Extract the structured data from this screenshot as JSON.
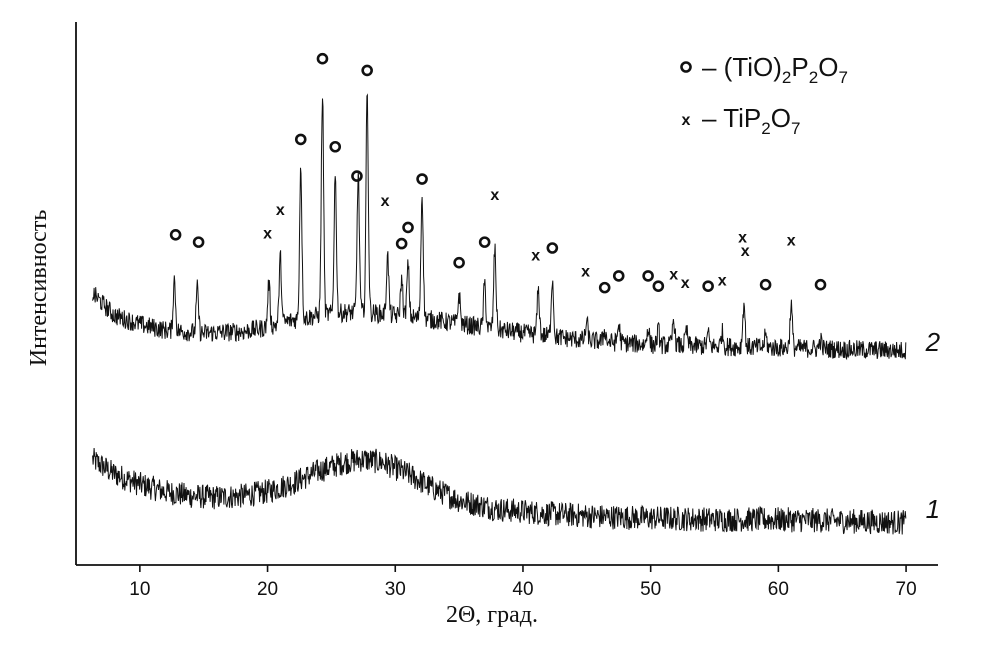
{
  "chart_data": {
    "type": "line",
    "title": "",
    "xlabel": "2Θ, град.",
    "ylabel": "Интенсивность",
    "xlim": [
      5,
      72.5
    ],
    "xticks": [
      10,
      20,
      30,
      40,
      50,
      60,
      70
    ],
    "y_ticks_shown": false,
    "grid": false,
    "legend": {
      "placement": "top-right",
      "entries": [
        {
          "symbol": "o",
          "label_main": "– (TiO)",
          "sub1": "2",
          "label_mid": "P",
          "sub2": "2",
          "label_end": "O",
          "sub3": "7"
        },
        {
          "symbol": "x",
          "label_main": "– TiP",
          "sub1": "2",
          "label_mid": "O",
          "sub2": "7",
          "label_end": "",
          "sub3": ""
        }
      ]
    },
    "series": [
      {
        "name": "1",
        "description_values": "amorphous halo",
        "x": [
          6.3,
          8,
          10,
          12,
          14,
          16,
          18,
          20,
          22,
          24,
          26,
          27.5,
          29,
          31,
          33,
          35,
          38,
          42,
          46,
          50,
          55,
          60,
          65,
          70
        ],
        "y": [
          0.72,
          0.62,
          0.55,
          0.5,
          0.47,
          0.46,
          0.47,
          0.5,
          0.56,
          0.64,
          0.7,
          0.72,
          0.7,
          0.62,
          0.52,
          0.44,
          0.38,
          0.35,
          0.33,
          0.32,
          0.31,
          0.31,
          0.3,
          0.29
        ]
      },
      {
        "name": "2",
        "baseline_x": [
          6.3,
          8,
          10,
          12,
          15,
          18,
          20,
          22,
          24,
          26,
          28,
          30,
          33,
          36,
          40,
          45,
          50,
          55,
          60,
          65,
          70
        ],
        "baseline_y": [
          1.85,
          1.7,
          1.64,
          1.6,
          1.58,
          1.59,
          1.62,
          1.67,
          1.7,
          1.72,
          1.72,
          1.7,
          1.67,
          1.63,
          1.58,
          1.53,
          1.5,
          1.49,
          1.48,
          1.47,
          1.46
        ],
        "peaks": [
          {
            "x": 12.7,
            "h": 0.35
          },
          {
            "x": 14.5,
            "h": 0.3
          },
          {
            "x": 20.1,
            "h": 0.3
          },
          {
            "x": 21.0,
            "h": 0.45
          },
          {
            "x": 22.6,
            "h": 1.05
          },
          {
            "x": 24.3,
            "h": 1.5
          },
          {
            "x": 25.3,
            "h": 0.95
          },
          {
            "x": 27.1,
            "h": 0.95
          },
          {
            "x": 27.8,
            "h": 1.5
          },
          {
            "x": 29.4,
            "h": 0.4
          },
          {
            "x": 30.5,
            "h": 0.25
          },
          {
            "x": 31.0,
            "h": 0.35
          },
          {
            "x": 32.1,
            "h": 0.85
          },
          {
            "x": 35.0,
            "h": 0.2
          },
          {
            "x": 37.0,
            "h": 0.3
          },
          {
            "x": 37.8,
            "h": 0.55
          },
          {
            "x": 41.2,
            "h": 0.3
          },
          {
            "x": 42.3,
            "h": 0.4
          },
          {
            "x": 45.0,
            "h": 0.12
          },
          {
            "x": 46.4,
            "h": 0.08
          },
          {
            "x": 47.5,
            "h": 0.12
          },
          {
            "x": 49.8,
            "h": 0.12
          },
          {
            "x": 50.6,
            "h": 0.1
          },
          {
            "x": 51.8,
            "h": 0.18
          },
          {
            "x": 52.8,
            "h": 0.1
          },
          {
            "x": 54.5,
            "h": 0.08
          },
          {
            "x": 55.6,
            "h": 0.1
          },
          {
            "x": 57.3,
            "h": 0.3
          },
          {
            "x": 59.0,
            "h": 0.08
          },
          {
            "x": 61.0,
            "h": 0.3
          },
          {
            "x": 63.3,
            "h": 0.06
          }
        ]
      }
    ],
    "annotations": {
      "o_markers": [
        {
          "x": 12.8,
          "y": 2.25
        },
        {
          "x": 14.6,
          "y": 2.2
        },
        {
          "x": 22.6,
          "y": 2.9
        },
        {
          "x": 24.3,
          "y": 3.45
        },
        {
          "x": 25.3,
          "y": 2.85
        },
        {
          "x": 27.0,
          "y": 2.65
        },
        {
          "x": 27.8,
          "y": 3.37
        },
        {
          "x": 30.5,
          "y": 2.19
        },
        {
          "x": 31.0,
          "y": 2.3
        },
        {
          "x": 32.1,
          "y": 2.63
        },
        {
          "x": 35.0,
          "y": 2.06
        },
        {
          "x": 37.0,
          "y": 2.2
        },
        {
          "x": 42.3,
          "y": 2.16
        },
        {
          "x": 46.4,
          "y": 1.89
        },
        {
          "x": 47.5,
          "y": 1.97
        },
        {
          "x": 49.8,
          "y": 1.97
        },
        {
          "x": 50.6,
          "y": 1.9
        },
        {
          "x": 54.5,
          "y": 1.9
        },
        {
          "x": 59.0,
          "y": 1.91
        },
        {
          "x": 63.3,
          "y": 1.91
        }
      ],
      "x_markers": [
        {
          "x": 20.0,
          "y": 2.26
        },
        {
          "x": 21.0,
          "y": 2.42
        },
        {
          "x": 29.2,
          "y": 2.48
        },
        {
          "x": 37.8,
          "y": 2.52
        },
        {
          "x": 41.0,
          "y": 2.11
        },
        {
          "x": 44.9,
          "y": 2.0
        },
        {
          "x": 51.8,
          "y": 1.98
        },
        {
          "x": 52.7,
          "y": 1.92
        },
        {
          "x": 55.6,
          "y": 1.94
        },
        {
          "x": 57.2,
          "y": 2.23
        },
        {
          "x": 57.4,
          "y": 2.14
        },
        {
          "x": 61.0,
          "y": 2.21
        }
      ],
      "curve_labels": [
        {
          "text": "2",
          "x": 72.1,
          "y": 1.52
        },
        {
          "text": "1",
          "x": 72.1,
          "y": 0.38
        }
      ]
    },
    "ylim": [
      0,
      3.7
    ]
  }
}
